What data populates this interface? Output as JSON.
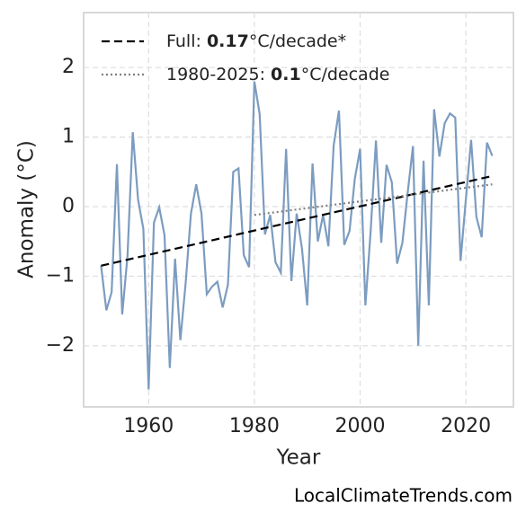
{
  "chart_data": {
    "type": "line",
    "xlabel": "Year",
    "ylabel": "Anomaly (°C)",
    "xlim": [
      1947.7,
      2029.0
    ],
    "ylim": [
      -2.88,
      2.79
    ],
    "xticks": [
      1960,
      1980,
      2000,
      2020
    ],
    "yticks": [
      {
        "value": -2,
        "label": "−2"
      },
      {
        "value": -1,
        "label": "−1"
      },
      0,
      1,
      2
    ],
    "grid": true,
    "legend": "upper left",
    "series": [
      {
        "color": "#7c9cc0",
        "style": "solid",
        "x": [
          1951,
          1952,
          1953,
          1954,
          1955,
          1956,
          1957,
          1958,
          1959,
          1960,
          1961,
          1962,
          1963,
          1964,
          1965,
          1966,
          1967,
          1968,
          1969,
          1970,
          1971,
          1972,
          1973,
          1974,
          1975,
          1976,
          1977,
          1978,
          1979,
          1980,
          1981,
          1982,
          1983,
          1984,
          1985,
          1986,
          1987,
          1988,
          1989,
          1990,
          1991,
          1992,
          1993,
          1994,
          1995,
          1996,
          1997,
          1998,
          1999,
          2000,
          2001,
          2002,
          2003,
          2004,
          2005,
          2006,
          2007,
          2008,
          2009,
          2010,
          2011,
          2012,
          2013,
          2014,
          2015,
          2016,
          2017,
          2018,
          2019,
          2020,
          2021,
          2022,
          2023,
          2024,
          2025
        ],
        "values": [
          -0.85,
          -1.49,
          -1.23,
          0.61,
          -1.55,
          -0.71,
          1.07,
          0.1,
          -0.32,
          -2.63,
          -0.23,
          -0.01,
          -0.41,
          -2.32,
          -0.75,
          -1.92,
          -1.1,
          -0.1,
          0.32,
          -0.1,
          -1.26,
          -1.15,
          -1.08,
          -1.45,
          -1.12,
          0.5,
          0.55,
          -0.7,
          -0.87,
          1.8,
          1.33,
          -0.4,
          -0.12,
          -0.8,
          -0.95,
          0.83,
          -1.07,
          -0.1,
          -0.6,
          -1.42,
          0.62,
          -0.5,
          -0.12,
          -0.57,
          0.88,
          1.38,
          -0.55,
          -0.35,
          0.4,
          0.83,
          -1.42,
          -0.35,
          0.95,
          -0.52,
          0.6,
          0.35,
          -0.82,
          -0.52,
          0.2,
          0.87,
          -2.0,
          0.66,
          -1.42,
          1.4,
          0.72,
          1.2,
          1.34,
          1.28,
          -0.78,
          0.1,
          0.96,
          -0.15,
          -0.44,
          0.92,
          0.73
        ]
      },
      {
        "name": {
          "prefix": "Full: ",
          "rate": "0.17",
          "unit": "°C/decade*"
        },
        "color": "#000000",
        "style": "dashed",
        "x": [
          1951,
          2025
        ],
        "values": [
          -0.85,
          0.44
        ]
      },
      {
        "name": {
          "prefix": "1980-2025: ",
          "rate": "0.1",
          "unit": "°C/decade"
        },
        "color": "#808080",
        "style": "dotted",
        "x": [
          1980,
          2025
        ],
        "values": [
          -0.12,
          0.32
        ]
      }
    ],
    "source": "LocalClimateTrends.com"
  }
}
